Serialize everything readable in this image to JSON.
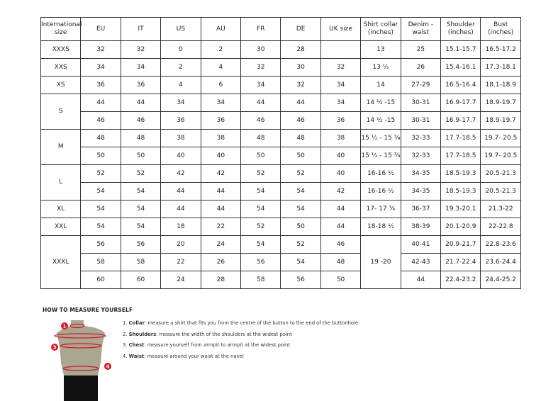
{
  "headers": [
    "International size",
    "EU",
    "IT",
    "US",
    "AU",
    "FR",
    "DE",
    "UK size",
    "Shirt collar (inches)",
    "Denim - waist",
    "Shoulder (inches)",
    "Bust (inches)"
  ],
  "groups": [
    {
      "size": "XXXS",
      "rows": [
        [
          "32",
          "32",
          "0",
          "2",
          "30",
          "28",
          "",
          "13",
          "25",
          "15.1-15.7",
          "16.5-17.2"
        ]
      ]
    },
    {
      "size": "XXS",
      "rows": [
        [
          "34",
          "34",
          "2",
          "4",
          "32",
          "30",
          "32",
          "13 ½",
          "26",
          "15.4-16.1",
          "17.3-18.1"
        ]
      ]
    },
    {
      "size": "XS",
      "rows": [
        [
          "36",
          "36",
          "4",
          "6",
          "34",
          "32",
          "34",
          "14",
          "27-29",
          "16.5-16.4",
          "18.1-18.9"
        ]
      ]
    },
    {
      "size": "S",
      "rows": [
        [
          "44",
          "44",
          "34",
          "34",
          "44",
          "44",
          "34",
          "14 ½ -15",
          "30-31",
          "16.9-17.7",
          "18.9-19.7"
        ],
        [
          "46",
          "46",
          "36",
          "36",
          "46",
          "46",
          "36",
          "14 ½ -15",
          "30-31",
          "16.9-17.7",
          "18.9-19.7"
        ]
      ]
    },
    {
      "size": "M",
      "rows": [
        [
          "48",
          "48",
          "38",
          "38",
          "48",
          "48",
          "38",
          "15 ½ - 15 ¾",
          "32-33",
          "17.7-18.5",
          "19.7- 20.5"
        ],
        [
          "50",
          "50",
          "40",
          "40",
          "50",
          "50",
          "40",
          "15 ½ - 15 ¾",
          "32-33",
          "17.7-18.5",
          "19.7- 20.5"
        ]
      ]
    },
    {
      "size": "L",
      "rows": [
        [
          "52",
          "52",
          "42",
          "42",
          "52",
          "52",
          "40",
          "16-16 ½",
          "34-35",
          "18.5-19.3",
          "20.5-21.3"
        ],
        [
          "54",
          "54",
          "44",
          "44",
          "54",
          "54",
          "42",
          "16-16 ½",
          "34-35",
          "18.5-19.3",
          "20.5-21.3"
        ]
      ]
    },
    {
      "size": "XL",
      "rows": [
        [
          "54",
          "54",
          "44",
          "44",
          "54",
          "54",
          "44",
          "17- 17 ¾",
          "36-37",
          "19.3-20.1",
          "21.3-22"
        ]
      ]
    },
    {
      "size": "XXL",
      "rows": [
        [
          "54",
          "54",
          "18",
          "22",
          "52",
          "50",
          "44",
          "18-18 ½",
          "38-39",
          "20.1-20.9",
          "22-22.8"
        ]
      ]
    },
    {
      "size": "XXXL",
      "shared_collar": "19 -20",
      "rows": [
        [
          "56",
          "56",
          "20",
          "24",
          "54",
          "52",
          "46",
          "40-41",
          "20.9-21.7",
          "22.8-23.6"
        ],
        [
          "58",
          "58",
          "22",
          "26",
          "56",
          "54",
          "48",
          "42-43",
          "21.7-22.4",
          "23.6-24.4"
        ],
        [
          "60",
          "60",
          "24",
          "28",
          "58",
          "56",
          "50",
          "44",
          "22.4-23.2",
          "24.4-25.2"
        ]
      ]
    }
  ],
  "guide": {
    "title": "HOW TO MEASURE YOURSELF",
    "steps": [
      {
        "num": "1.",
        "term": "Collar",
        "text": ": measure a shirt that fits you from the centre of the button to the end of the buttonhole"
      },
      {
        "num": "2.",
        "term": "Shoulders",
        "text": ": measure the width of the shoulders at the widest point"
      },
      {
        "num": "3.",
        "term": "Chest",
        "text": ": measure yourself from armpit to armpit at the widest point"
      },
      {
        "num": "4.",
        "term": "Waist",
        "text": ": measure around your waist at the navel"
      }
    ],
    "markers": [
      "1",
      "2",
      "3",
      "4"
    ],
    "accent": "#d7192b",
    "body_color": "#a9a692"
  }
}
